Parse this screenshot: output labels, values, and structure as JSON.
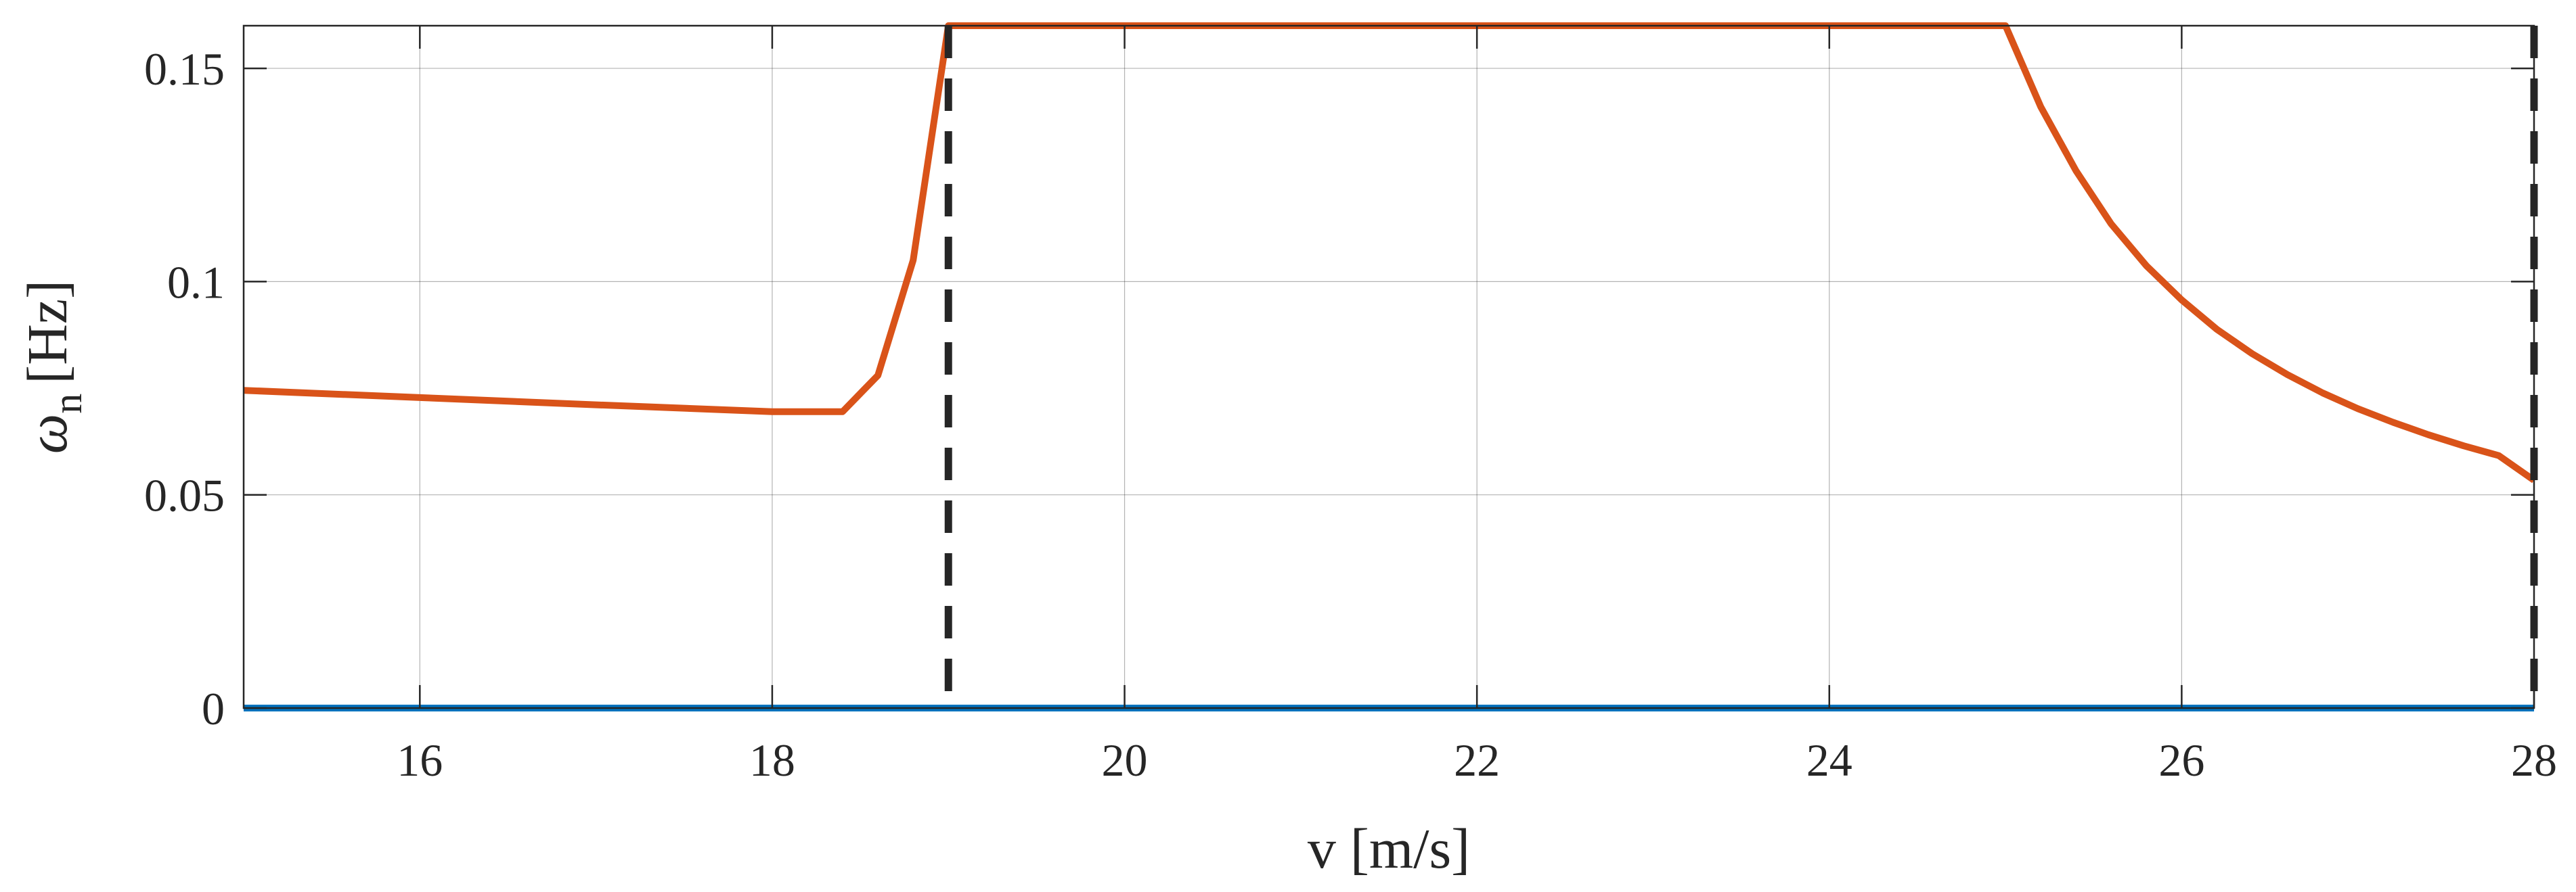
{
  "chart_data": {
    "type": "line",
    "title": "",
    "xlabel": "v [m/s]",
    "ylabel": {
      "symbol": "ω",
      "subscript": "n",
      "unit": "[Hz]"
    },
    "xlim": [
      15,
      28
    ],
    "ylim": [
      0,
      0.16
    ],
    "x_ticks": [
      16,
      18,
      20,
      22,
      24,
      26,
      28
    ],
    "y_ticks": [
      0,
      0.05,
      0.1,
      0.15
    ],
    "x_tick_labels": [
      "16",
      "18",
      "20",
      "22",
      "24",
      "26",
      "28"
    ],
    "y_tick_labels": [
      "0",
      "0.05",
      "0.1",
      "0.15"
    ],
    "grid": true,
    "legend": "none",
    "series": [
      {
        "color": "#0072BD",
        "x": [
          15,
          28
        ],
        "y": [
          0,
          0
        ]
      },
      {
        "color": "#D95319",
        "x": [
          15,
          16,
          17,
          18,
          18.4,
          18.6,
          18.8,
          19,
          20,
          22,
          24,
          25,
          25.2,
          25.4,
          25.6,
          25.8,
          26,
          26.2,
          26.4,
          26.6,
          26.8,
          27,
          27.2,
          27.4,
          27.6,
          27.8,
          28
        ],
        "y": [
          0.0745,
          0.0728,
          0.0711,
          0.0695,
          0.0695,
          0.078,
          0.105,
          0.16,
          0.16,
          0.16,
          0.16,
          0.16,
          0.141,
          0.126,
          0.1135,
          0.1037,
          0.0957,
          0.0888,
          0.0831,
          0.0782,
          0.0739,
          0.0702,
          0.067,
          0.0641,
          0.0615,
          0.0592,
          0.0534
        ]
      }
    ],
    "vertical_lines": [
      {
        "x": 19,
        "style": "dashed",
        "color": "#262626"
      },
      {
        "x": 28,
        "style": "dashed",
        "color": "#262626"
      }
    ]
  }
}
